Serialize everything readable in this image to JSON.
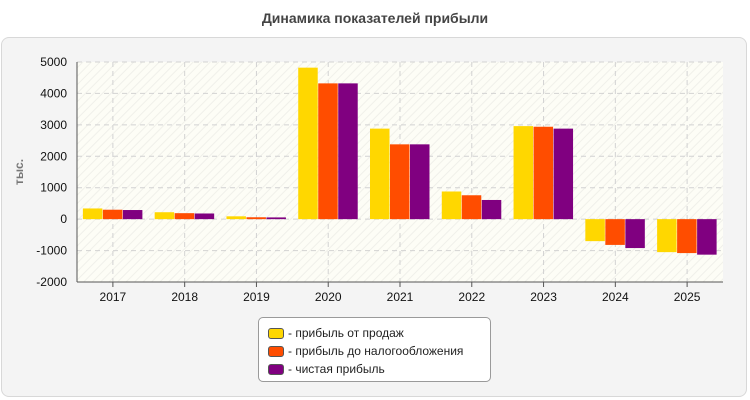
{
  "chart_data": {
    "type": "bar",
    "title": "Динамика показателей прибыли",
    "ylabel": "тыс.",
    "xlabel": "",
    "categories": [
      "2017",
      "2018",
      "2019",
      "2020",
      "2021",
      "2022",
      "2023",
      "2024",
      "2025"
    ],
    "ylim": [
      -2000,
      5000
    ],
    "yticks": [
      5000,
      4000,
      3000,
      2000,
      1000,
      0,
      -1000,
      -2000
    ],
    "grid": true,
    "legend_position": "bottom",
    "series": [
      {
        "name": "- прибыль от продаж",
        "color": "#ffd700",
        "values": [
          340,
          220,
          90,
          4820,
          2880,
          880,
          2960,
          -700,
          -1050
        ]
      },
      {
        "name": "- прибыль до налогообложения",
        "color": "#ff4d00",
        "values": [
          300,
          190,
          60,
          4320,
          2380,
          760,
          2940,
          -820,
          -1080
        ]
      },
      {
        "name": "- чистая прибыль",
        "color": "#800080",
        "values": [
          290,
          180,
          55,
          4320,
          2380,
          610,
          2880,
          -920,
          -1130
        ]
      }
    ]
  }
}
